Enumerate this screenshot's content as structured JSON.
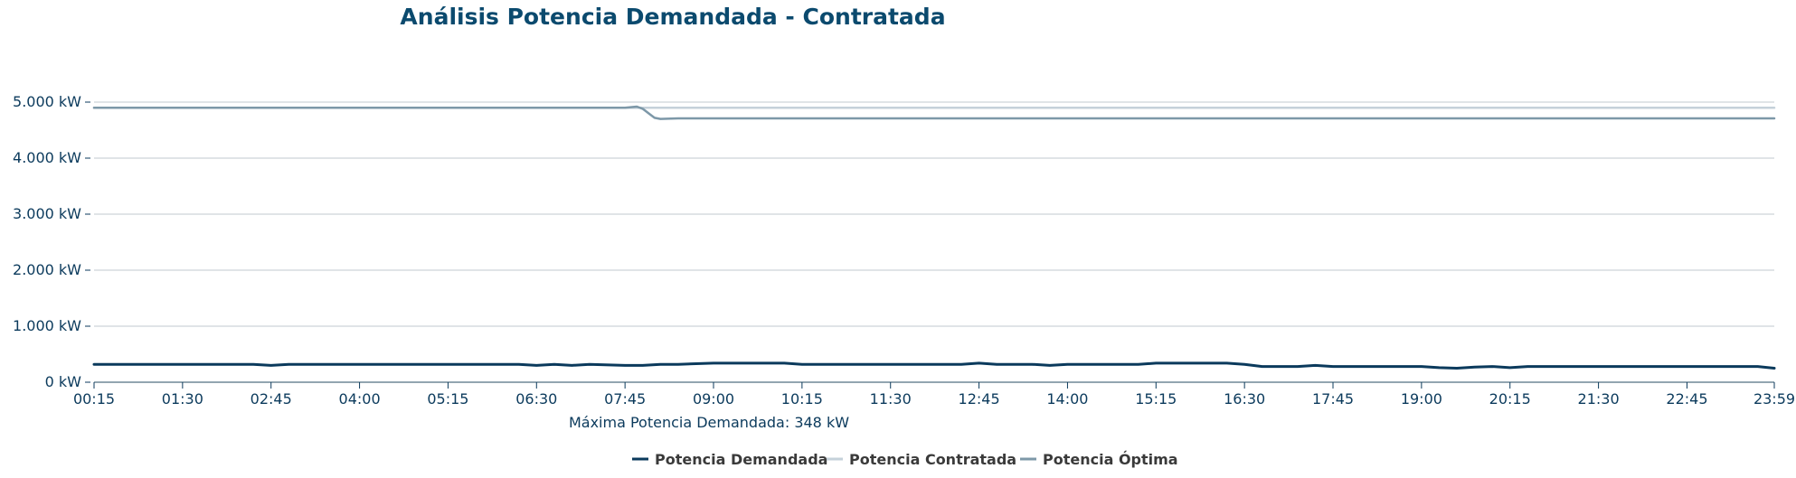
{
  "chart_data": {
    "type": "line",
    "title": "Análisis Potencia Demandada - Contratada",
    "xlabel": "Máxima Potencia Demandada: 348 kW",
    "ylabel": "",
    "ylim": [
      0,
      5000
    ],
    "y_ticks": [
      0,
      1000,
      2000,
      3000,
      4000,
      5000
    ],
    "y_tick_labels": [
      "0 kW",
      "1.000 kW",
      "2.000 kW",
      "3.000 kW",
      "4.000 kW",
      "5.000 kW"
    ],
    "x_tick_labels": [
      "00:15",
      "01:30",
      "02:45",
      "04:00",
      "05:15",
      "06:30",
      "07:45",
      "09:00",
      "10:15",
      "11:30",
      "12:45",
      "14:00",
      "15:15",
      "16:30",
      "17:45",
      "19:00",
      "20:15",
      "21:30",
      "22:45",
      "23:59"
    ],
    "grid": true,
    "legend_position": "bottom-center",
    "series": [
      {
        "name": "Potencia Demandada",
        "color": "#0b3a5c",
        "x": [
          "00:15",
          "01:30",
          "02:30",
          "02:45",
          "03:00",
          "04:00",
          "05:15",
          "06:15",
          "06:30",
          "06:45",
          "07:00",
          "07:15",
          "07:45",
          "08:00",
          "08:15",
          "08:30",
          "09:00",
          "09:30",
          "10:00",
          "10:15",
          "11:30",
          "12:30",
          "12:45",
          "13:00",
          "13:30",
          "13:45",
          "14:00",
          "15:00",
          "15:15",
          "16:00",
          "16:15",
          "16:30",
          "16:45",
          "17:15",
          "17:30",
          "17:45",
          "19:00",
          "19:15",
          "19:30",
          "19:45",
          "20:00",
          "20:15",
          "20:30",
          "21:30",
          "22:45",
          "23:45",
          "23:59"
        ],
        "values": [
          320,
          320,
          320,
          300,
          320,
          320,
          320,
          320,
          300,
          320,
          300,
          320,
          300,
          300,
          320,
          320,
          340,
          340,
          340,
          320,
          320,
          320,
          340,
          320,
          320,
          300,
          320,
          320,
          340,
          340,
          340,
          320,
          280,
          280,
          300,
          280,
          280,
          260,
          250,
          270,
          280,
          260,
          280,
          280,
          280,
          280,
          250
        ]
      },
      {
        "name": "Potencia Contratada",
        "color": "#c5d1da",
        "x": [
          "00:15",
          "23:59"
        ],
        "values": [
          4900,
          4900
        ]
      },
      {
        "name": "Potencia Óptima",
        "color": "#7d98a8",
        "x": [
          "00:15",
          "07:45",
          "07:55",
          "08:00",
          "08:05",
          "08:10",
          "08:15",
          "08:30",
          "23:59"
        ],
        "values": [
          4900,
          4900,
          4920,
          4880,
          4800,
          4720,
          4700,
          4710,
          4710
        ]
      }
    ]
  }
}
